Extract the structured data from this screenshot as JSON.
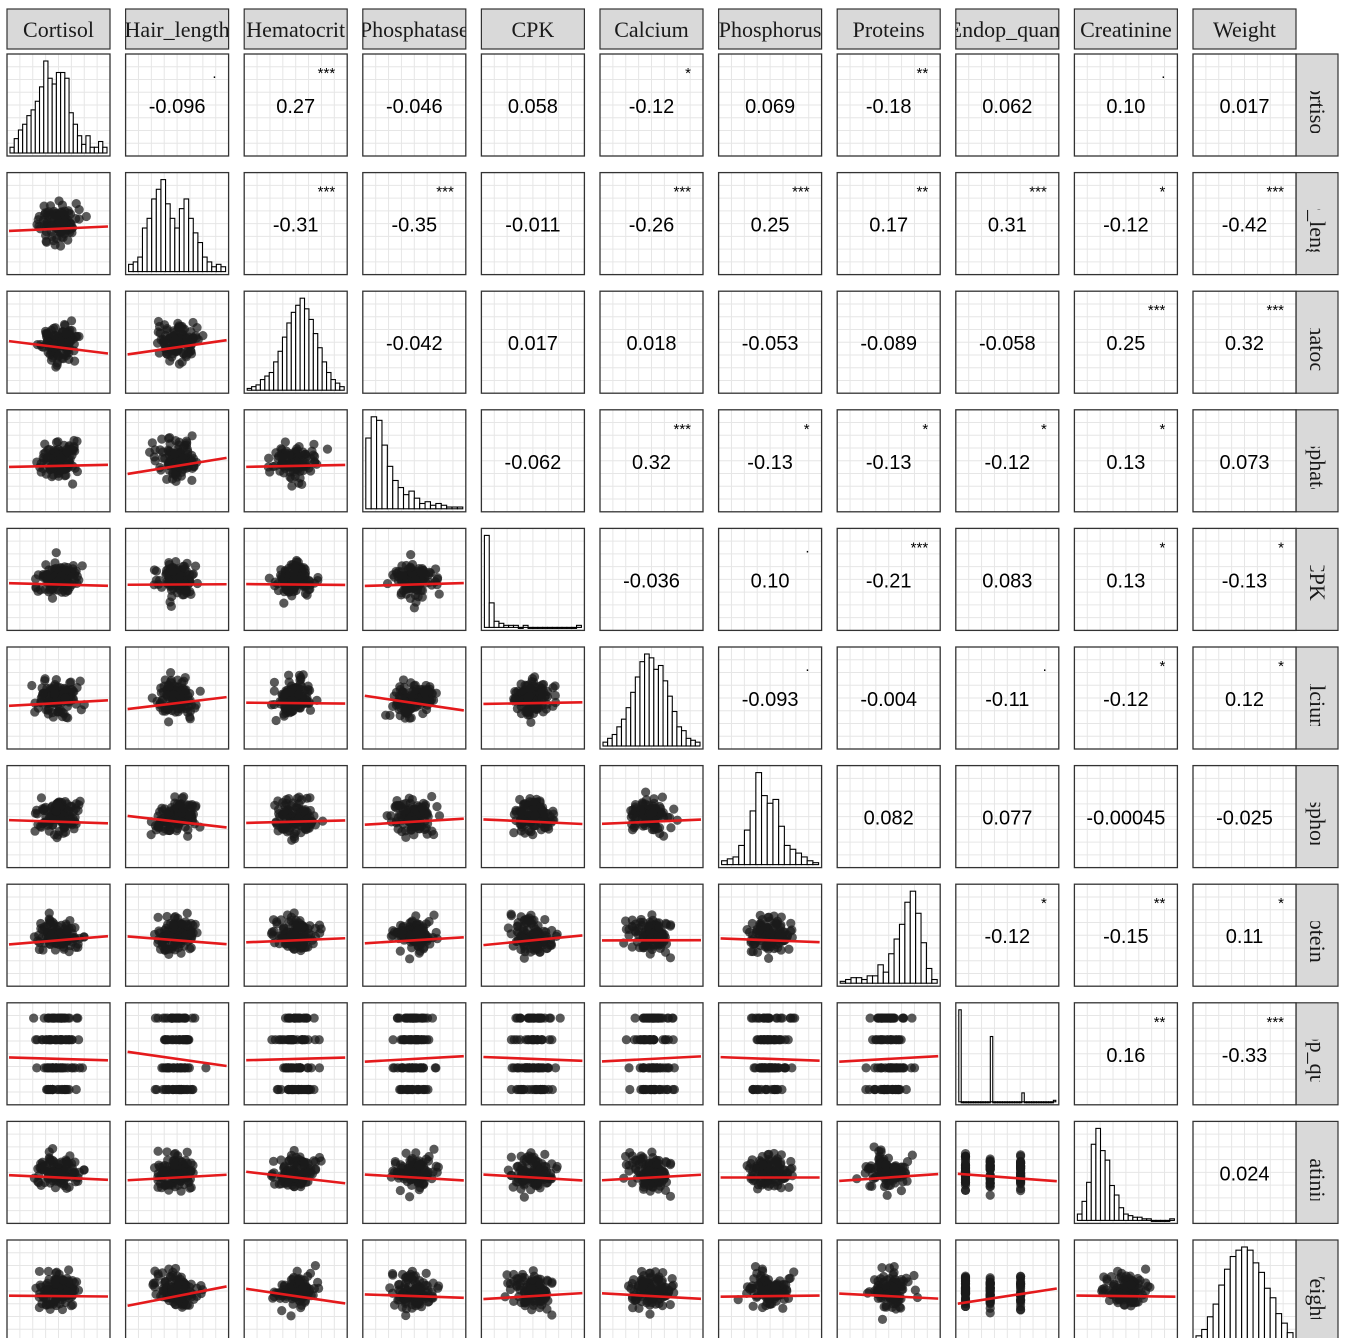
{
  "chart_data": {
    "type": "scatterplot-matrix",
    "variables": [
      "Cortisol",
      "Hair_length",
      "Hematocrit",
      "Phosphatase",
      "CPK",
      "Calcium",
      "Phosphorus",
      "Proteins",
      "Endop_quant",
      "Creatinine",
      "Weight"
    ],
    "column_labels": [
      "Cortisol",
      "Hair_length",
      "Hematocrit",
      "Phosphatase",
      "CPK",
      "Calcium",
      "Phosphorus",
      "Proteins",
      "Endop_quant",
      "Creatinine",
      "Weight"
    ],
    "row_labels": [
      "Cortisol",
      "Hair_length",
      "Hematocrit",
      "Phosphatase",
      "CPK",
      "Calcium",
      "Phosphorus",
      "Proteins",
      "Endop_quant",
      "Creatinine",
      "Weight"
    ],
    "correlations": [
      {
        "row": 0,
        "col": 1,
        "label": "-0.096",
        "stars": "."
      },
      {
        "row": 0,
        "col": 2,
        "label": "0.27",
        "stars": "***"
      },
      {
        "row": 0,
        "col": 3,
        "label": "-0.046",
        "stars": ""
      },
      {
        "row": 0,
        "col": 4,
        "label": "0.058",
        "stars": ""
      },
      {
        "row": 0,
        "col": 5,
        "label": "-0.12",
        "stars": "*"
      },
      {
        "row": 0,
        "col": 6,
        "label": "0.069",
        "stars": ""
      },
      {
        "row": 0,
        "col": 7,
        "label": "-0.18",
        "stars": "**"
      },
      {
        "row": 0,
        "col": 8,
        "label": "0.062",
        "stars": ""
      },
      {
        "row": 0,
        "col": 9,
        "label": "0.10",
        "stars": "."
      },
      {
        "row": 0,
        "col": 10,
        "label": "0.017",
        "stars": ""
      },
      {
        "row": 1,
        "col": 2,
        "label": "-0.31",
        "stars": "***"
      },
      {
        "row": 1,
        "col": 3,
        "label": "-0.35",
        "stars": "***"
      },
      {
        "row": 1,
        "col": 4,
        "label": "-0.011",
        "stars": ""
      },
      {
        "row": 1,
        "col": 5,
        "label": "-0.26",
        "stars": "***"
      },
      {
        "row": 1,
        "col": 6,
        "label": "0.25",
        "stars": "***"
      },
      {
        "row": 1,
        "col": 7,
        "label": "0.17",
        "stars": "**"
      },
      {
        "row": 1,
        "col": 8,
        "label": "0.31",
        "stars": "***"
      },
      {
        "row": 1,
        "col": 9,
        "label": "-0.12",
        "stars": "*"
      },
      {
        "row": 1,
        "col": 10,
        "label": "-0.42",
        "stars": "***"
      },
      {
        "row": 2,
        "col": 3,
        "label": "-0.042",
        "stars": ""
      },
      {
        "row": 2,
        "col": 4,
        "label": "0.017",
        "stars": ""
      },
      {
        "row": 2,
        "col": 5,
        "label": "0.018",
        "stars": ""
      },
      {
        "row": 2,
        "col": 6,
        "label": "-0.053",
        "stars": ""
      },
      {
        "row": 2,
        "col": 7,
        "label": "-0.089",
        "stars": ""
      },
      {
        "row": 2,
        "col": 8,
        "label": "-0.058",
        "stars": ""
      },
      {
        "row": 2,
        "col": 9,
        "label": "0.25",
        "stars": "***"
      },
      {
        "row": 2,
        "col": 10,
        "label": "0.32",
        "stars": "***"
      },
      {
        "row": 3,
        "col": 4,
        "label": "-0.062",
        "stars": ""
      },
      {
        "row": 3,
        "col": 5,
        "label": "0.32",
        "stars": "***"
      },
      {
        "row": 3,
        "col": 6,
        "label": "-0.13",
        "stars": "*"
      },
      {
        "row": 3,
        "col": 7,
        "label": "-0.13",
        "stars": "*"
      },
      {
        "row": 3,
        "col": 8,
        "label": "-0.12",
        "stars": "*"
      },
      {
        "row": 3,
        "col": 9,
        "label": "0.13",
        "stars": "*"
      },
      {
        "row": 3,
        "col": 10,
        "label": "0.073",
        "stars": ""
      },
      {
        "row": 4,
        "col": 5,
        "label": "-0.036",
        "stars": ""
      },
      {
        "row": 4,
        "col": 6,
        "label": "0.10",
        "stars": "."
      },
      {
        "row": 4,
        "col": 7,
        "label": "-0.21",
        "stars": "***"
      },
      {
        "row": 4,
        "col": 8,
        "label": "0.083",
        "stars": ""
      },
      {
        "row": 4,
        "col": 9,
        "label": "0.13",
        "stars": "*"
      },
      {
        "row": 4,
        "col": 10,
        "label": "-0.13",
        "stars": "*"
      },
      {
        "row": 5,
        "col": 6,
        "label": "-0.093",
        "stars": "."
      },
      {
        "row": 5,
        "col": 7,
        "label": "-0.004",
        "stars": ""
      },
      {
        "row": 5,
        "col": 8,
        "label": "-0.11",
        "stars": "."
      },
      {
        "row": 5,
        "col": 9,
        "label": "-0.12",
        "stars": "*"
      },
      {
        "row": 5,
        "col": 10,
        "label": "0.12",
        "stars": "*"
      },
      {
        "row": 6,
        "col": 7,
        "label": "0.082",
        "stars": ""
      },
      {
        "row": 6,
        "col": 8,
        "label": "0.077",
        "stars": ""
      },
      {
        "row": 6,
        "col": 9,
        "label": "-0.00045",
        "stars": ""
      },
      {
        "row": 6,
        "col": 10,
        "label": "-0.025",
        "stars": ""
      },
      {
        "row": 7,
        "col": 8,
        "label": "-0.12",
        "stars": "*"
      },
      {
        "row": 7,
        "col": 9,
        "label": "-0.15",
        "stars": "**"
      },
      {
        "row": 7,
        "col": 10,
        "label": "0.11",
        "stars": "*"
      },
      {
        "row": 8,
        "col": 9,
        "label": "0.16",
        "stars": "**"
      },
      {
        "row": 8,
        "col": 10,
        "label": "-0.33",
        "stars": "***"
      },
      {
        "row": 9,
        "col": 10,
        "label": "0.024",
        "stars": ""
      }
    ],
    "histograms": [
      [
        2,
        5,
        8,
        10,
        13,
        15,
        18,
        23,
        32,
        26,
        24,
        28,
        28,
        26,
        14,
        10,
        6,
        3,
        6,
        2,
        2,
        4,
        2
      ],
      [
        3,
        4,
        6,
        18,
        22,
        30,
        34,
        38,
        28,
        22,
        18,
        26,
        30,
        22,
        16,
        12,
        6,
        4,
        2,
        3,
        2
      ],
      [
        1,
        2,
        3,
        6,
        8,
        10,
        16,
        22,
        30,
        38,
        44,
        48,
        52,
        46,
        40,
        32,
        24,
        16,
        10,
        6,
        4,
        2
      ],
      [
        40,
        52,
        50,
        36,
        24,
        16,
        12,
        8,
        10,
        6,
        3,
        4,
        2,
        3,
        2,
        1,
        1,
        1
      ],
      [
        45,
        12,
        3,
        2,
        1,
        1,
        1,
        0,
        1,
        0,
        0,
        0,
        0,
        0,
        0,
        0,
        0,
        0,
        0,
        1
      ],
      [
        2,
        4,
        6,
        10,
        14,
        20,
        28,
        36,
        44,
        48,
        46,
        40,
        42,
        34,
        26,
        18,
        10,
        8,
        4,
        3,
        2
      ],
      [
        2,
        3,
        4,
        10,
        18,
        28,
        48,
        36,
        32,
        34,
        20,
        10,
        8,
        6,
        4,
        2,
        1
      ],
      [
        1,
        2,
        3,
        3,
        2,
        4,
        4,
        10,
        6,
        16,
        24,
        32,
        44,
        50,
        38,
        22,
        8,
        2
      ],
      [
        62,
        0,
        0,
        0,
        0,
        0,
        0,
        0,
        0,
        0,
        0,
        0,
        0,
        44,
        0,
        0,
        0,
        0,
        0,
        0,
        0,
        0,
        0,
        0,
        0,
        0,
        6,
        0,
        0,
        0,
        0,
        0,
        0,
        0,
        0,
        0,
        0,
        0,
        0,
        1
      ],
      [
        4,
        12,
        24,
        48,
        58,
        44,
        38,
        22,
        16,
        8,
        4,
        3,
        2,
        2,
        1,
        1,
        0,
        0,
        0,
        0,
        1
      ],
      [
        2,
        6,
        14,
        22,
        34,
        44,
        52,
        56,
        58,
        56,
        48,
        42,
        32,
        26,
        16,
        10,
        4
      ]
    ],
    "x_tick_labels": [],
    "y_tick_labels": [],
    "axis_ranges": "not printed",
    "grid": true,
    "legend": "none",
    "line_color": "#e41a1c",
    "point_color": "#1a1a1a",
    "strip_fill": "#d9d9d9"
  }
}
